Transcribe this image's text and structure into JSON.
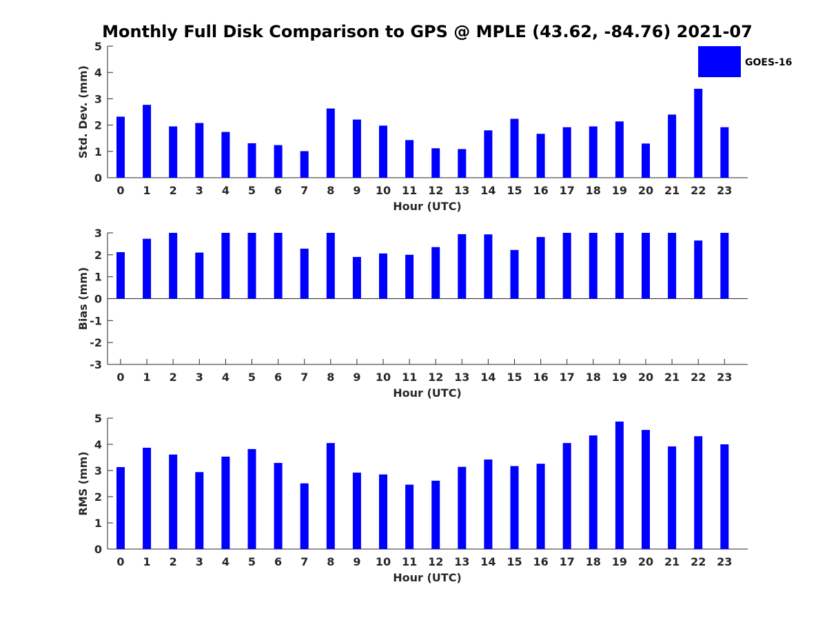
{
  "title": "Monthly Full Disk Comparison to GPS @ MPLE (43.62, -84.76) 2021-07",
  "legend": {
    "label": "GOES-16",
    "color": "#0000ff"
  },
  "chart_data": [
    {
      "type": "bar",
      "title": "",
      "xlabel": "Hour (UTC)",
      "ylabel": "Std. Dev. (mm)",
      "ylim": [
        0,
        5
      ],
      "yticks": [
        0,
        1,
        2,
        3,
        4,
        5
      ],
      "categories": [
        "0",
        "1",
        "2",
        "3",
        "4",
        "5",
        "6",
        "7",
        "8",
        "9",
        "10",
        "11",
        "12",
        "13",
        "14",
        "15",
        "16",
        "17",
        "18",
        "19",
        "20",
        "21",
        "22",
        "23"
      ],
      "series": [
        {
          "name": "GOES-16",
          "color": "#0000ff",
          "values": [
            2.32,
            2.77,
            1.95,
            2.08,
            1.74,
            1.31,
            1.24,
            1.01,
            2.63,
            2.21,
            1.98,
            1.43,
            1.12,
            1.09,
            1.8,
            2.24,
            1.67,
            1.92,
            1.95,
            2.14,
            1.3,
            2.4,
            3.38,
            1.92
          ]
        }
      ]
    },
    {
      "type": "bar",
      "title": "",
      "xlabel": "Hour (UTC)",
      "ylabel": "Bias (mm)",
      "ylim": [
        -3,
        3
      ],
      "yticks": [
        -3,
        -2,
        -1,
        0,
        1,
        2,
        3
      ],
      "categories": [
        "0",
        "1",
        "2",
        "3",
        "4",
        "5",
        "6",
        "7",
        "8",
        "9",
        "10",
        "11",
        "12",
        "13",
        "14",
        "15",
        "16",
        "17",
        "18",
        "19",
        "20",
        "21",
        "22",
        "23"
      ],
      "series": [
        {
          "name": "GOES-16",
          "color": "#0000ff",
          "values": [
            2.12,
            2.73,
            3.0,
            2.1,
            3.0,
            3.0,
            3.0,
            2.28,
            3.0,
            1.9,
            2.06,
            2.0,
            2.35,
            2.94,
            2.93,
            2.22,
            2.81,
            3.0,
            3.0,
            3.0,
            3.0,
            3.0,
            2.65,
            3.0
          ]
        }
      ]
    },
    {
      "type": "bar",
      "title": "",
      "xlabel": "Hour (UTC)",
      "ylabel": "RMS (mm)",
      "ylim": [
        0,
        5
      ],
      "yticks": [
        0,
        1,
        2,
        3,
        4,
        5
      ],
      "categories": [
        "0",
        "1",
        "2",
        "3",
        "4",
        "5",
        "6",
        "7",
        "8",
        "9",
        "10",
        "11",
        "12",
        "13",
        "14",
        "15",
        "16",
        "17",
        "18",
        "19",
        "20",
        "21",
        "22",
        "23"
      ],
      "series": [
        {
          "name": "GOES-16",
          "color": "#0000ff",
          "values": [
            3.13,
            3.87,
            3.61,
            2.94,
            3.53,
            3.82,
            3.29,
            2.51,
            4.05,
            2.92,
            2.85,
            2.46,
            2.61,
            3.14,
            3.42,
            3.17,
            3.26,
            4.05,
            4.34,
            4.87,
            4.55,
            3.92,
            4.31,
            4.0
          ]
        }
      ]
    }
  ]
}
